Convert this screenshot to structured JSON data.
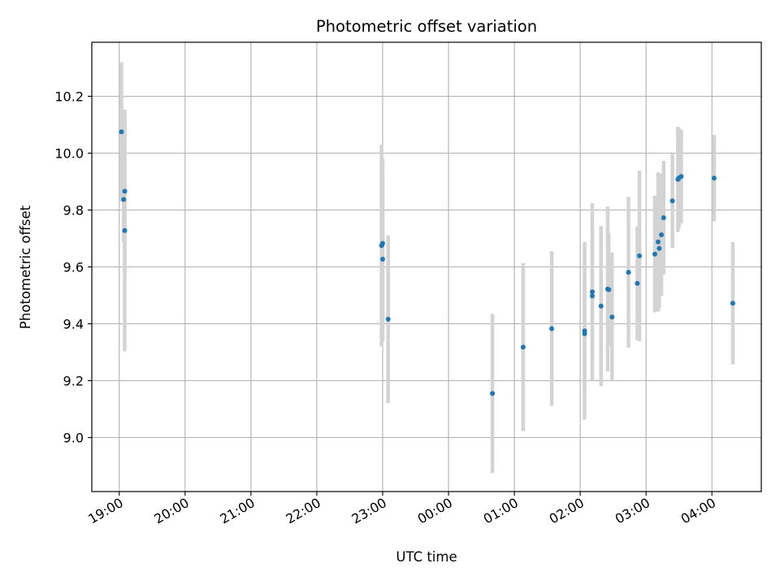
{
  "chart_data": {
    "type": "scatter",
    "title": "Photometric offset variation",
    "xlabel": "UTC time",
    "ylabel": "Photometric offset",
    "x_is_time": true,
    "x_ticks": [
      "19:00",
      "20:00",
      "21:00",
      "22:00",
      "23:00",
      "00:00",
      "01:00",
      "02:00",
      "03:00",
      "04:00"
    ],
    "x_tick_hours_elapsed_from_19": [
      0,
      1,
      2,
      3,
      4,
      5,
      6,
      7,
      8,
      9
    ],
    "y_ticks": [
      "9.0",
      "9.2",
      "9.4",
      "9.6",
      "9.8",
      "10.0",
      "10.2"
    ],
    "ylim": [
      8.81,
      10.39
    ],
    "xlim": [
      "18:35",
      "04:45"
    ],
    "grid": true,
    "point_color": "#1f77b4",
    "errorbar_color": "#d3d3d3",
    "points": [
      {
        "t": "19:02",
        "y": 10.075,
        "err": 0.245
      },
      {
        "t": "19:04",
        "y": 9.837,
        "err": 0.15
      },
      {
        "t": "19:05",
        "y": 9.866,
        "err": 0.28
      },
      {
        "t": "19:05",
        "y": 9.728,
        "err": 0.425
      },
      {
        "t": "22:59",
        "y": 9.675,
        "err": 0.355
      },
      {
        "t": "23:00",
        "y": 9.683,
        "err": 0.3
      },
      {
        "t": "23:00",
        "y": 9.627,
        "err": 0.29
      },
      {
        "t": "23:05",
        "y": 9.416,
        "err": 0.295
      },
      {
        "t": "00:40",
        "y": 9.155,
        "err": 0.28
      },
      {
        "t": "01:08",
        "y": 9.318,
        "err": 0.295
      },
      {
        "t": "01:34",
        "y": 9.383,
        "err": 0.272
      },
      {
        "t": "02:04",
        "y": 9.375,
        "err": 0.312
      },
      {
        "t": "02:04",
        "y": 9.365,
        "err": 0.2
      },
      {
        "t": "02:11",
        "y": 9.512,
        "err": 0.312
      },
      {
        "t": "02:11",
        "y": 9.498,
        "err": 0.2
      },
      {
        "t": "02:19",
        "y": 9.462,
        "err": 0.282
      },
      {
        "t": "02:25",
        "y": 9.522,
        "err": 0.29
      },
      {
        "t": "02:26",
        "y": 9.52,
        "err": 0.2
      },
      {
        "t": "02:29",
        "y": 9.424,
        "err": 0.227
      },
      {
        "t": "02:44",
        "y": 9.581,
        "err": 0.265
      },
      {
        "t": "02:52",
        "y": 9.542,
        "err": 0.2
      },
      {
        "t": "02:54",
        "y": 9.639,
        "err": 0.3
      },
      {
        "t": "03:08",
        "y": 9.645,
        "err": 0.205
      },
      {
        "t": "03:11",
        "y": 9.688,
        "err": 0.245
      },
      {
        "t": "03:12",
        "y": 9.665,
        "err": 0.21
      },
      {
        "t": "03:14",
        "y": 9.713,
        "err": 0.215
      },
      {
        "t": "03:16",
        "y": 9.773,
        "err": 0.2
      },
      {
        "t": "03:24",
        "y": 9.832,
        "err": 0.165
      },
      {
        "t": "03:29",
        "y": 9.908,
        "err": 0.185
      },
      {
        "t": "03:30",
        "y": 9.913,
        "err": 0.175
      },
      {
        "t": "03:32",
        "y": 9.918,
        "err": 0.165
      },
      {
        "t": "04:02",
        "y": 9.912,
        "err": 0.152
      },
      {
        "t": "04:19",
        "y": 9.472,
        "err": 0.215
      }
    ]
  }
}
